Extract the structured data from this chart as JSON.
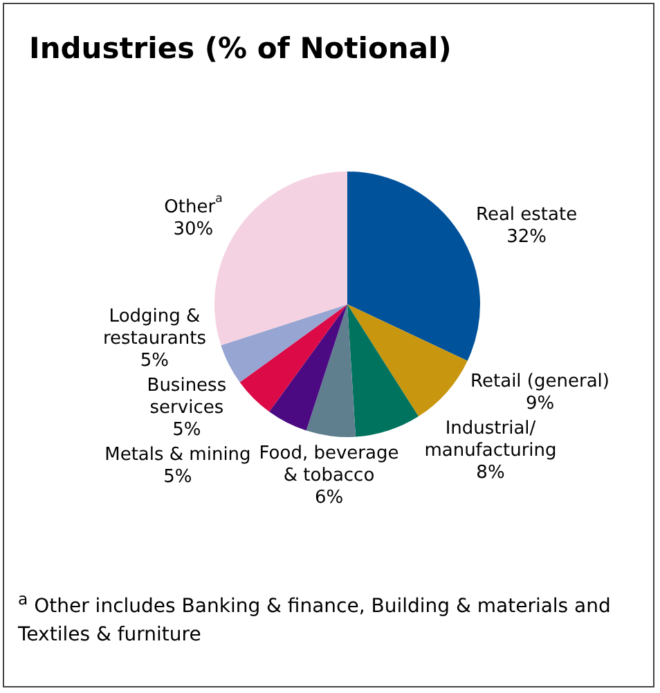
{
  "chart_data": {
    "type": "pie",
    "title": "Industries (% of Notional)",
    "categories": [
      "Real estate",
      "Retail (general)",
      "Industrial/manufacturing",
      "Food, beverage & tobacco",
      "Metals & mining",
      "Business services",
      "Lodging & restaurants",
      "Other$^{a}$"
    ],
    "values": [
      32,
      9,
      8,
      6,
      5,
      5,
      5,
      30
    ],
    "value_labels": [
      "32%",
      "9%",
      "8%",
      "6%",
      "5%",
      "5%",
      "5%",
      "30%"
    ],
    "colors": [
      "#00529b",
      "#c8960f",
      "#00735f",
      "#5f7f8f",
      "#4b0a82",
      "#dc0a46",
      "#96a5d2",
      "#f5d2e1"
    ],
    "legend": false,
    "annotations": [
      "$^{a}$ Other includes Banking & finance, Building & materials and Textiles & furniture"
    ]
  }
}
